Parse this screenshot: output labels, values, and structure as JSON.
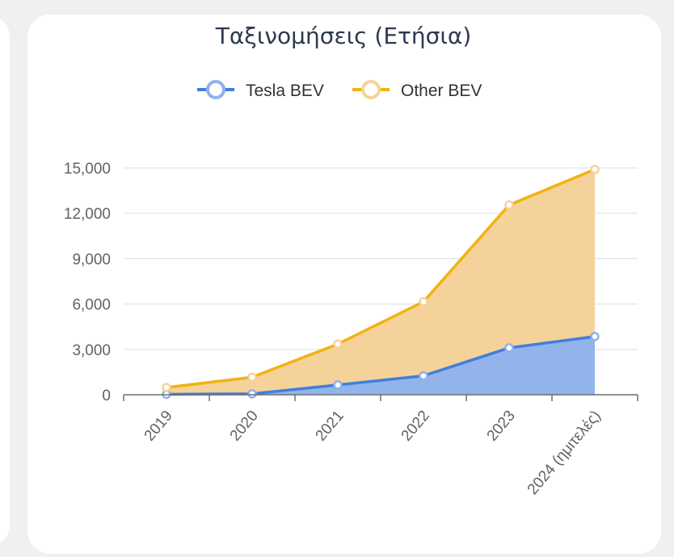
{
  "chart_data": {
    "type": "area",
    "stacked": true,
    "title": "Ταξινομήσεις (Ετήσια)",
    "categories": [
      "2019",
      "2020",
      "2021",
      "2022",
      "2023",
      "2024 (ημιτελές)"
    ],
    "series": [
      {
        "name": "Tesla BEV",
        "values": [
          30,
          60,
          650,
          1250,
          3100,
          3850
        ],
        "line_color": "#3f7fe0",
        "fill_color": "#93b4eb"
      },
      {
        "name": "Other BEV",
        "values": [
          450,
          1100,
          2700,
          4900,
          9450,
          11050
        ],
        "line_color": "#f0b312",
        "fill_color": "#f5d29a"
      }
    ],
    "y_ticks": [
      "0",
      "3,000",
      "6,000",
      "9,000",
      "12,000",
      "15,000"
    ],
    "ylim": [
      0,
      15000
    ],
    "grid": true,
    "legend_position": "top-center"
  }
}
